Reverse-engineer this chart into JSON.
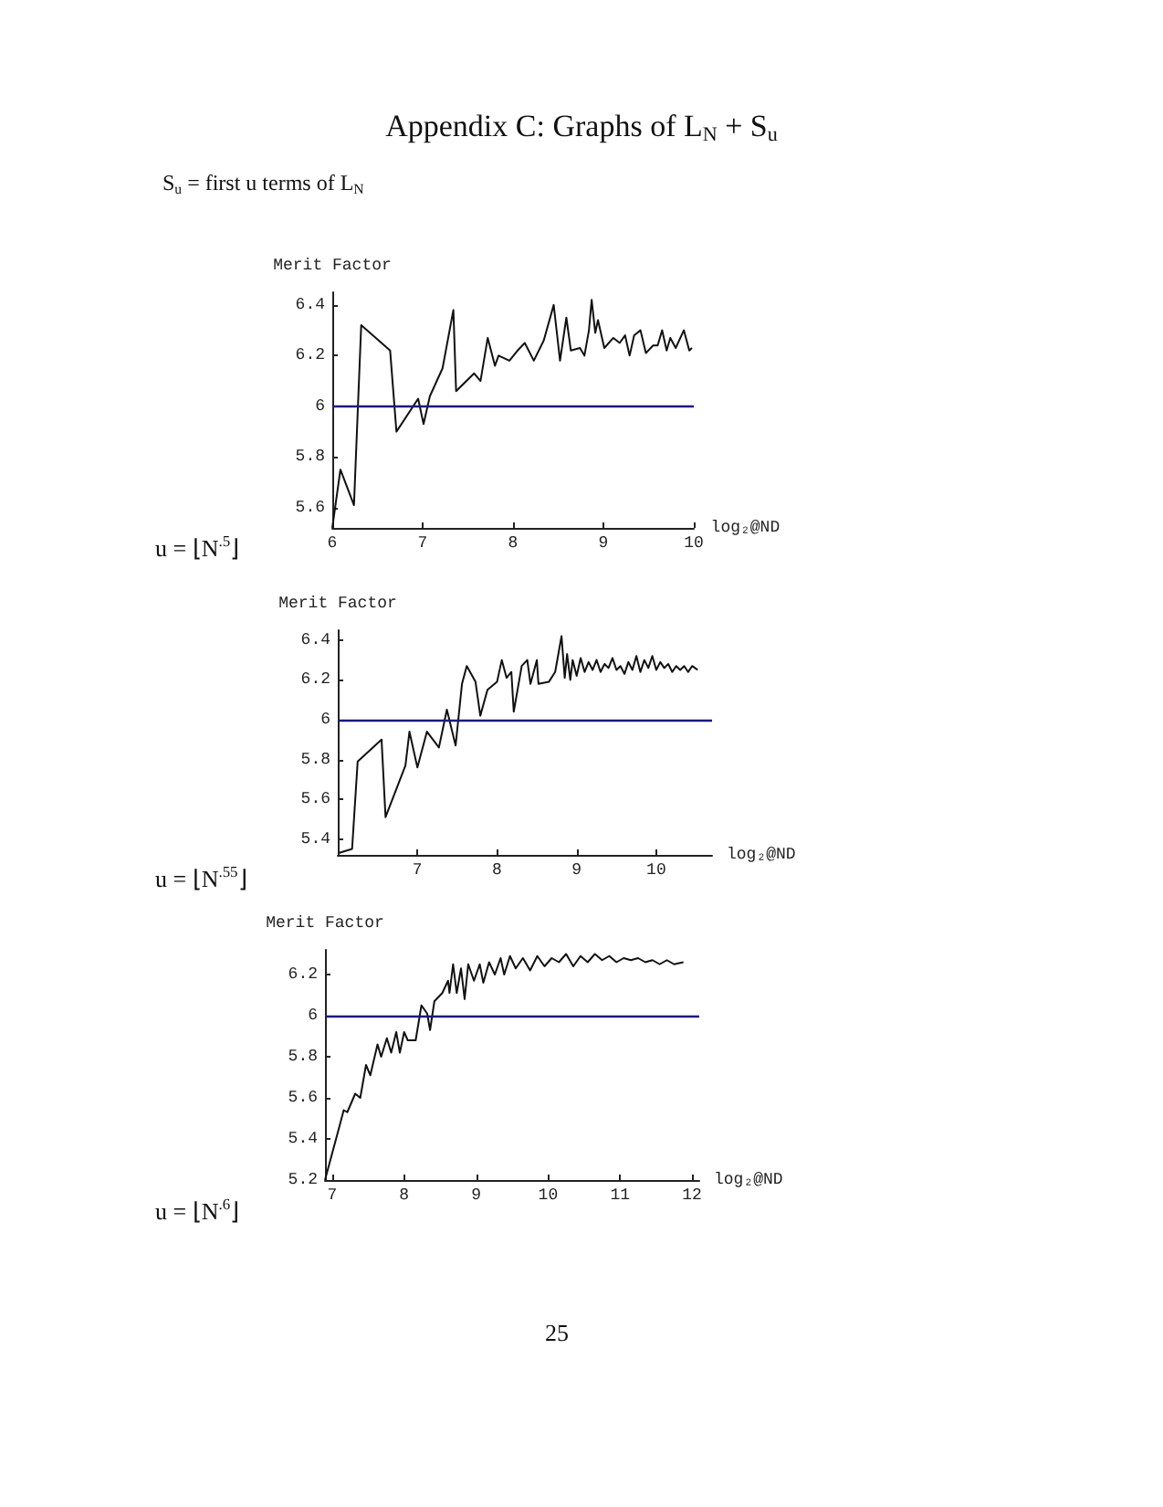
{
  "chart_data": [
    {
      "type": "line",
      "title": "Appendix C: Graphs of L$_{N}$ + S$_{u}$",
      "subtitle": "S$_{u}$ = first u terms of L$_{N}$",
      "xlabel": "log₂@ND",
      "ylabel": "Merit Factor",
      "annotations": [
        "u = ⌊N$^{.5}$⌋"
      ],
      "xlim": [
        6,
        10
      ],
      "xticks": [
        6,
        7,
        8,
        9,
        10
      ],
      "ylim": [
        5.52,
        6.45
      ],
      "yticks": [
        5.6,
        5.8,
        6,
        6.2,
        6.4
      ],
      "grid": false,
      "marker": "none",
      "line_style": "solid",
      "ref_lines": [
        {
          "axis": "y",
          "value": 6,
          "color": "#1a1a7a"
        }
      ],
      "series": [
        {
          "color": "#111111",
          "x": [
            6,
            6.09,
            6.24,
            6.32,
            6.64,
            6.71,
            6.95,
            7.01,
            7.08,
            7.22,
            7.34,
            7.37,
            7.57,
            7.64,
            7.72,
            7.8,
            7.84,
            7.96,
            8.05,
            8.13,
            8.23,
            8.34,
            8.45,
            8.52,
            8.59,
            8.64,
            8.74,
            8.79,
            8.84,
            8.87,
            8.91,
            8.94,
            9.01,
            9.11,
            9.18,
            9.24,
            9.29,
            9.34,
            9.41,
            9.47,
            9.55,
            9.6,
            9.65,
            9.7,
            9.74,
            9.8,
            9.89,
            9.95,
            9.98
          ],
          "values": [
            5.52,
            5.75,
            5.61,
            6.32,
            6.22,
            5.9,
            6.03,
            5.93,
            6.04,
            6.15,
            6.38,
            6.06,
            6.13,
            6.1,
            6.27,
            6.16,
            6.2,
            6.18,
            6.22,
            6.25,
            6.18,
            6.26,
            6.4,
            6.18,
            6.35,
            6.22,
            6.23,
            6.2,
            6.3,
            6.42,
            6.29,
            6.34,
            6.23,
            6.27,
            6.25,
            6.28,
            6.2,
            6.28,
            6.3,
            6.21,
            6.24,
            6.24,
            6.3,
            6.22,
            6.27,
            6.23,
            6.3,
            6.22,
            6.23
          ]
        }
      ]
    },
    {
      "type": "line",
      "xlabel": "log₂@ND",
      "ylabel": "Merit Factor",
      "annotations": [
        "u = ⌊N$^{.55}$⌋"
      ],
      "xlim": [
        6,
        10.7
      ],
      "xticks": [
        7,
        8,
        9,
        10
      ],
      "ylim": [
        5.32,
        6.45
      ],
      "yticks": [
        5.4,
        5.6,
        5.8,
        6,
        6.2,
        6.4
      ],
      "grid": false,
      "marker": "none",
      "line_style": "solid",
      "ref_lines": [
        {
          "axis": "y",
          "value": 6,
          "color": "#1a1a7a"
        }
      ],
      "series": [
        {
          "color": "#111111",
          "x": [
            6.02,
            6.18,
            6.25,
            6.55,
            6.6,
            6.85,
            6.9,
            7,
            7.12,
            7.27,
            7.37,
            7.48,
            7.56,
            7.62,
            7.73,
            7.79,
            7.88,
            8,
            8.06,
            8.12,
            8.18,
            8.21,
            8.31,
            8.38,
            8.42,
            8.5,
            8.52,
            8.65,
            8.73,
            8.81,
            8.85,
            8.88,
            8.92,
            8.95,
            9,
            9.05,
            9.1,
            9.15,
            9.2,
            9.25,
            9.3,
            9.35,
            9.4,
            9.45,
            9.5,
            9.55,
            9.6,
            9.65,
            9.7,
            9.75,
            9.8,
            9.85,
            9.9,
            9.95,
            10,
            10.05,
            10.1,
            10.15,
            10.2,
            10.25,
            10.3,
            10.35,
            10.4,
            10.45,
            10.52
          ],
          "values": [
            5.33,
            5.35,
            5.79,
            5.9,
            5.51,
            5.77,
            5.94,
            5.76,
            5.94,
            5.86,
            6.05,
            5.87,
            6.18,
            6.27,
            6.19,
            6.02,
            6.15,
            6.19,
            6.3,
            6.21,
            6.24,
            6.04,
            6.27,
            6.3,
            6.18,
            6.3,
            6.18,
            6.19,
            6.24,
            6.42,
            6.21,
            6.33,
            6.2,
            6.3,
            6.22,
            6.31,
            6.24,
            6.29,
            6.25,
            6.3,
            6.24,
            6.28,
            6.26,
            6.31,
            6.25,
            6.27,
            6.23,
            6.29,
            6.25,
            6.32,
            6.24,
            6.3,
            6.26,
            6.32,
            6.25,
            6.29,
            6.26,
            6.28,
            6.24,
            6.27,
            6.25,
            6.27,
            6.24,
            6.27,
            6.25
          ]
        }
      ]
    },
    {
      "type": "line",
      "xlabel": "log₂@ND",
      "ylabel": "Merit Factor",
      "annotations": [
        "u = ⌊N$^{.6}$⌋",
        "25"
      ],
      "xlim": [
        6.9,
        12.1
      ],
      "xticks": [
        7,
        8,
        9,
        10,
        11,
        12
      ],
      "ylim": [
        5.2,
        6.32
      ],
      "yticks": [
        5.2,
        5.4,
        5.6,
        5.8,
        6,
        6.2
      ],
      "grid": false,
      "marker": "none",
      "line_style": "solid",
      "ref_lines": [
        {
          "axis": "y",
          "value": 6,
          "color": "#1a1a7a"
        }
      ],
      "series": [
        {
          "color": "#111111",
          "x": [
            6.9,
            7.1,
            7.16,
            7.21,
            7.32,
            7.39,
            7.47,
            7.53,
            7.63,
            7.68,
            7.76,
            7.82,
            7.89,
            7.94,
            8,
            8.05,
            8.16,
            8.24,
            8.32,
            8.36,
            8.42,
            8.53,
            8.61,
            8.63,
            8.68,
            8.73,
            8.79,
            8.84,
            8.89,
            8.97,
            9.05,
            9.1,
            9.18,
            9.26,
            9.34,
            9.39,
            9.47,
            9.55,
            9.65,
            9.75,
            9.85,
            9.95,
            10.05,
            10.15,
            10.25,
            10.35,
            10.45,
            10.55,
            10.65,
            10.75,
            10.85,
            10.95,
            11.05,
            11.15,
            11.25,
            11.35,
            11.45,
            11.55,
            11.65,
            11.75,
            11.88
          ],
          "values": [
            5.2,
            5.46,
            5.54,
            5.53,
            5.62,
            5.6,
            5.76,
            5.71,
            5.86,
            5.8,
            5.89,
            5.82,
            5.92,
            5.82,
            5.92,
            5.88,
            5.88,
            6.05,
            6.01,
            5.93,
            6.07,
            6.11,
            6.17,
            6.11,
            6.25,
            6.11,
            6.23,
            6.08,
            6.25,
            6.17,
            6.25,
            6.16,
            6.26,
            6.2,
            6.28,
            6.2,
            6.29,
            6.23,
            6.28,
            6.22,
            6.29,
            6.24,
            6.28,
            6.26,
            6.3,
            6.24,
            6.29,
            6.26,
            6.3,
            6.27,
            6.29,
            6.26,
            6.28,
            6.27,
            6.28,
            6.26,
            6.27,
            6.25,
            6.27,
            6.25,
            6.26
          ]
        }
      ]
    }
  ]
}
